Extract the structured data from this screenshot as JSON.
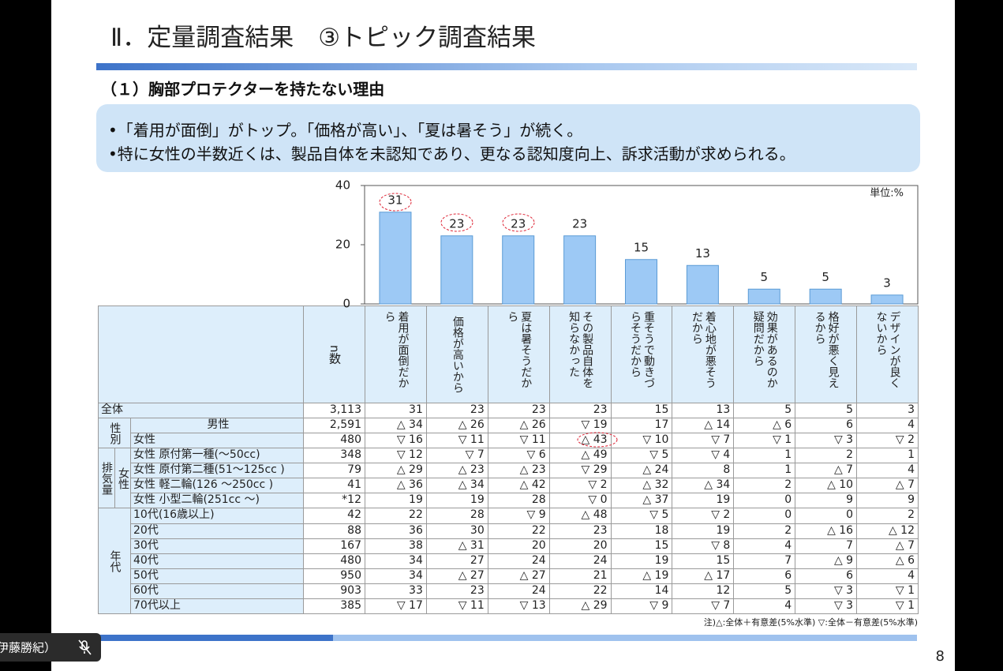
{
  "header": {
    "title": "Ⅱ．定量調査結果　③トピック調査結果",
    "subtitle": "（１）胸部プロテクターを持たない理由"
  },
  "summary": [
    "•「着用が面倒」がトップ。「価格が高い」、「夏は暑そう」が続く。",
    "•特に女性の半数近くは、製品自体を未認知であり、更なる認知度向上、訴求活動が求められる。"
  ],
  "chart_data": {
    "type": "bar",
    "unit_label": "単位:%",
    "categories": [
      "着用が面倒だから",
      "価格が高いから",
      "夏は暑そうだから",
      "その製品自体を知らなかった",
      "重そうで動きづらそうだから",
      "着心地が悪そうだから",
      "効果があるのか疑問だから",
      "格好が悪く見えるから",
      "デザインが良くないから"
    ],
    "values": [
      31,
      23,
      23,
      23,
      15,
      13,
      5,
      5,
      3
    ],
    "color": "#9dc9f5",
    "ylim": [
      0,
      40
    ],
    "yticks": [
      0,
      20,
      40
    ],
    "grid": false
  },
  "table": {
    "n_header": "n数",
    "groups": [
      {
        "label": "性別"
      },
      {
        "label": "排気量",
        "sublabel": "女性"
      },
      {
        "label": "年代"
      }
    ],
    "rows": [
      {
        "label": "全体",
        "n": "3,113",
        "cells": [
          "31",
          "23",
          "23",
          "23",
          "15",
          "13",
          "5",
          "5",
          "3"
        ]
      },
      {
        "label": "男性",
        "n": "2,591",
        "cells": [
          "△ 34",
          "△ 26",
          "△ 26",
          "▽ 19",
          "17",
          "△ 14",
          "△ 6",
          "6",
          "4"
        ]
      },
      {
        "label": "女性",
        "n": "480",
        "cells": [
          "▽ 16",
          "▽ 11",
          "▽ 11",
          "△ 43",
          "▽ 10",
          "▽ 7",
          "▽ 1",
          "▽ 3",
          "▽ 2"
        ]
      },
      {
        "label": "女性  原付第一種(～50cc)",
        "n": "348",
        "cells": [
          "▽ 12",
          "▽ 7",
          "▽ 6",
          "△ 49",
          "▽ 5",
          "▽ 4",
          "1",
          "2",
          "1"
        ]
      },
      {
        "label": "女性  原付第二種(51～125cc )",
        "n": "79",
        "cells": [
          "△ 29",
          "△ 23",
          "△ 23",
          "▽ 29",
          "△ 24",
          "8",
          "1",
          "△ 7",
          "4"
        ]
      },
      {
        "label": "女性  軽二輪(126 ～250cc )",
        "n": "41",
        "cells": [
          "△ 36",
          "△ 34",
          "△ 42",
          "▽ 2",
          "△ 32",
          "△ 34",
          "2",
          "△ 10",
          "△ 7"
        ]
      },
      {
        "label": "女性  小型二輪(251cc ～)",
        "n": "*12",
        "cells": [
          "19",
          "19",
          "28",
          "▽ 0",
          "△ 37",
          "19",
          "0",
          "9",
          "9"
        ]
      },
      {
        "label": "10代(16歳以上)",
        "n": "42",
        "cells": [
          "22",
          "28",
          "▽ 9",
          "△ 48",
          "▽ 5",
          "▽ 2",
          "0",
          "0",
          "2"
        ]
      },
      {
        "label": "20代",
        "n": "88",
        "cells": [
          "36",
          "30",
          "22",
          "23",
          "18",
          "19",
          "2",
          "△ 16",
          "△ 12"
        ]
      },
      {
        "label": "30代",
        "n": "167",
        "cells": [
          "38",
          "△ 31",
          "20",
          "20",
          "15",
          "▽ 8",
          "4",
          "7",
          "△ 7"
        ]
      },
      {
        "label": "40代",
        "n": "480",
        "cells": [
          "34",
          "27",
          "24",
          "24",
          "19",
          "15",
          "7",
          "△ 9",
          "△ 6"
        ]
      },
      {
        "label": "50代",
        "n": "950",
        "cells": [
          "34",
          "△ 27",
          "△ 27",
          "21",
          "△ 19",
          "△ 17",
          "6",
          "6",
          "4"
        ]
      },
      {
        "label": "60代",
        "n": "903",
        "cells": [
          "33",
          "23",
          "24",
          "22",
          "14",
          "12",
          "5",
          "▽ 3",
          "▽ 1"
        ]
      },
      {
        "label": "70代以上",
        "n": "385",
        "cells": [
          "▽ 17",
          "▽ 11",
          "▽ 13",
          "△ 29",
          "▽ 9",
          "▽ 7",
          "4",
          "▽ 3",
          "▽ 1"
        ]
      }
    ]
  },
  "footnote": "注)△:全体＋有意差(5%水準) ▽:全体－有意差(5%水準)",
  "page_number": "8",
  "participant": "伊藤勝紀）"
}
